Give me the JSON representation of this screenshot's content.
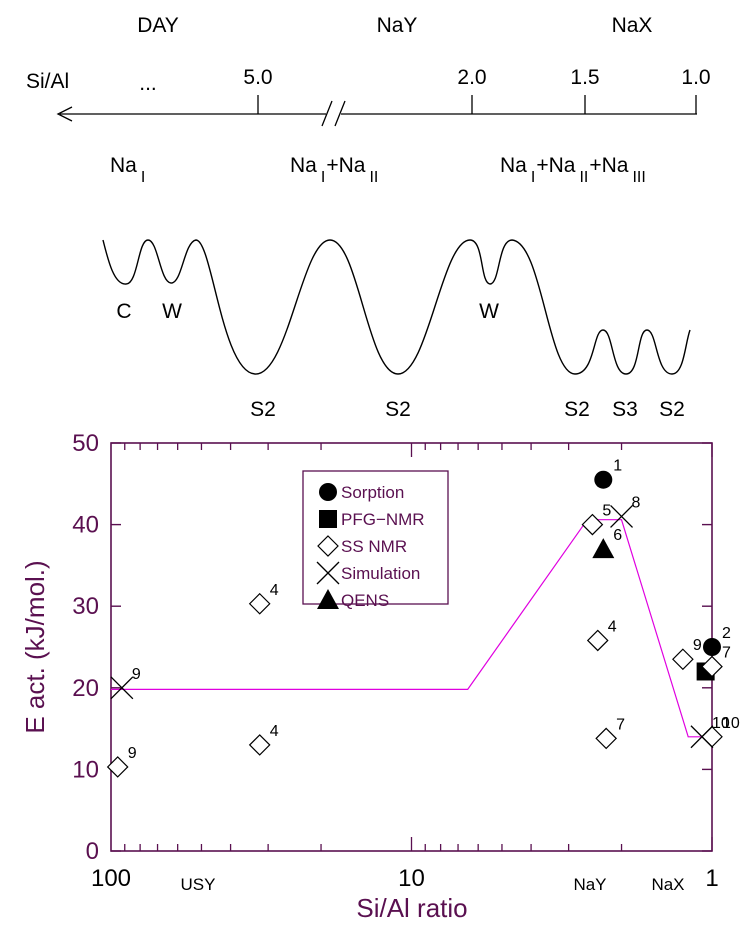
{
  "header": {
    "zeolites": [
      "DAY",
      "NaY",
      "NaX"
    ],
    "si_al_label": "Si/Al",
    "ellipsis": "...",
    "ticks": [
      "5.0",
      "2.0",
      "1.5",
      "1.0"
    ],
    "cation_groups": [
      {
        "parts": [
          [
            "Na",
            "I"
          ]
        ]
      },
      {
        "parts": [
          [
            "Na",
            "I"
          ],
          [
            "Na",
            "II"
          ]
        ]
      },
      {
        "parts": [
          [
            "Na",
            "I"
          ],
          [
            "Na",
            "II"
          ],
          [
            "Na",
            "III"
          ]
        ]
      }
    ]
  },
  "energy_profile": {
    "site_labels": [
      "C",
      "W",
      "W",
      "S2",
      "S2",
      "S2",
      "S3",
      "S2"
    ]
  },
  "chart_data": {
    "type": "scatter",
    "xlabel": "Si/Al ratio",
    "ylabel": "E act. (kJ/mol.)",
    "x_scale": "log",
    "x_reversed": true,
    "xlim": [
      100,
      1
    ],
    "ylim": [
      0,
      50
    ],
    "x_ticks": [
      "100",
      "10",
      "1"
    ],
    "y_ticks": [
      "0",
      "10",
      "20",
      "30",
      "40",
      "50"
    ],
    "x_annotations": [
      "USY",
      "NaY",
      "NaX"
    ],
    "legend_position": "top-center",
    "legend": [
      "Sorption",
      "PFG−NMR",
      "SS NMR",
      "Simulation",
      "QENS"
    ],
    "colors": {
      "axis": "#5a1050",
      "trend_line": "#e000e0",
      "markers": "#000000"
    },
    "series": [
      {
        "name": "Sorption",
        "marker": "filled-circle",
        "points": [
          {
            "x": 2.3,
            "y": 45.5,
            "ref": "1"
          },
          {
            "x": 1.0,
            "y": 25,
            "ref": "2"
          }
        ]
      },
      {
        "name": "PFG−NMR",
        "marker": "filled-square",
        "points": [
          {
            "x": 1.05,
            "y": 22,
            "ref": ""
          }
        ]
      },
      {
        "name": "SS NMR",
        "marker": "open-diamond",
        "points": [
          {
            "x": 95,
            "y": 10.3,
            "ref": "9"
          },
          {
            "x": 32,
            "y": 30.3,
            "ref": "4"
          },
          {
            "x": 32,
            "y": 13,
            "ref": "4"
          },
          {
            "x": 2.5,
            "y": 40,
            "ref": "5"
          },
          {
            "x": 2.4,
            "y": 25.8,
            "ref": "4"
          },
          {
            "x": 2.25,
            "y": 13.8,
            "ref": "7"
          },
          {
            "x": 1.25,
            "y": 23.5,
            "ref": "9"
          },
          {
            "x": 1.0,
            "y": 22.6,
            "ref": "7"
          },
          {
            "x": 1.0,
            "y": 14,
            "ref": "10"
          }
        ]
      },
      {
        "name": "Simulation",
        "marker": "cross",
        "points": [
          {
            "x": 92,
            "y": 20,
            "ref": "9"
          },
          {
            "x": 2.0,
            "y": 41,
            "ref": "8"
          },
          {
            "x": 1.08,
            "y": 14,
            "ref": "10"
          }
        ]
      },
      {
        "name": "QENS",
        "marker": "filled-triangle",
        "points": [
          {
            "x": 2.3,
            "y": 37,
            "ref": "6"
          }
        ]
      }
    ],
    "trend_line": [
      {
        "x": 100,
        "y": 19.8
      },
      {
        "x": 6.5,
        "y": 19.8
      },
      {
        "x": 2.6,
        "y": 40.6
      },
      {
        "x": 2.0,
        "y": 40.6
      },
      {
        "x": 1.2,
        "y": 14
      },
      {
        "x": 1.0,
        "y": 14
      }
    ]
  }
}
